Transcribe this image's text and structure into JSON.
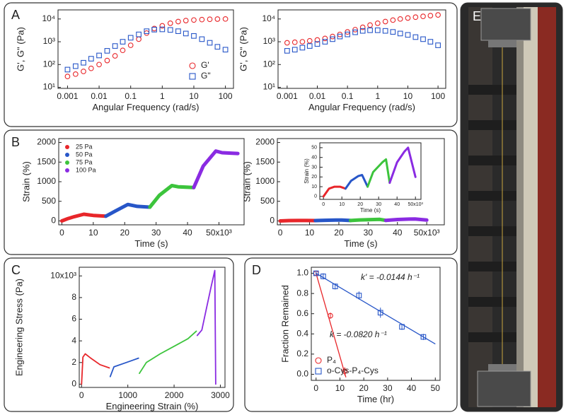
{
  "chart_data": [
    {
      "panel": "A",
      "type": "scatter",
      "x_label": "Angular Frequency (rad/s)",
      "y_label": "G', G\" (Pa)",
      "log_x": true,
      "log_y": true,
      "xlim": [
        0.0005,
        180
      ],
      "ylim": [
        9,
        25000
      ],
      "xticks": [
        0.001,
        0.01,
        0.1,
        1,
        10,
        100
      ],
      "yticks": [
        {
          "value": 10,
          "label": "10¹"
        },
        {
          "value": 100,
          "label": "10²"
        },
        {
          "value": 1000,
          "label": "10³"
        },
        {
          "value": 10000,
          "label": "10⁴"
        }
      ],
      "legend": "lower right",
      "x": [
        0.001,
        0.0018,
        0.0032,
        0.0056,
        0.01,
        0.018,
        0.032,
        0.056,
        0.1,
        0.18,
        0.32,
        0.56,
        1,
        1.8,
        3.2,
        5.6,
        10,
        18,
        32,
        56,
        100
      ],
      "series": [
        {
          "name": "G'",
          "color": "#e8262a",
          "marker": "circle",
          "values": [
            30,
            38,
            50,
            68,
            100,
            150,
            240,
            420,
            700,
            1300,
            2400,
            3800,
            5000,
            6500,
            7700,
            8500,
            9000,
            9400,
            9700,
            9900,
            10000
          ]
        },
        {
          "name": "G\"",
          "color": "#2756c8",
          "marker": "square",
          "values": [
            60,
            85,
            120,
            180,
            250,
            400,
            650,
            1000,
            1500,
            2100,
            2900,
            3400,
            3500,
            3300,
            2900,
            2300,
            1800,
            1300,
            900,
            600,
            450
          ]
        }
      ]
    },
    {
      "type": "scatter",
      "x_label": "Angular Frequency (rad/s)",
      "y_label": "G', G\" (Pa)",
      "log_x": true,
      "log_y": true,
      "xlim": [
        0.0005,
        180
      ],
      "ylim": [
        9,
        25000
      ],
      "xticks": [
        0.001,
        0.01,
        0.1,
        1,
        10,
        100
      ],
      "yticks": [
        {
          "value": 10,
          "label": "10¹"
        },
        {
          "value": 100,
          "label": "10²"
        },
        {
          "value": 1000,
          "label": "10³"
        },
        {
          "value": 10000,
          "label": "10⁴"
        }
      ],
      "x": [
        0.001,
        0.0018,
        0.0032,
        0.0056,
        0.01,
        0.018,
        0.032,
        0.056,
        0.1,
        0.18,
        0.32,
        0.56,
        1,
        1.8,
        3.2,
        5.6,
        10,
        18,
        32,
        56,
        100
      ],
      "series": [
        {
          "color": "#e8262a",
          "marker": "circle",
          "values": [
            900,
            950,
            1000,
            1100,
            1200,
            1400,
            1700,
            2100,
            2700,
            3400,
            4300,
            5400,
            6500,
            7700,
            8900,
            10000,
            11000,
            12000,
            13000,
            14000,
            15000
          ]
        },
        {
          "color": "#2756c8",
          "marker": "square",
          "values": [
            400,
            450,
            550,
            650,
            800,
            1000,
            1300,
            1700,
            2100,
            2600,
            3000,
            3200,
            3200,
            3000,
            2700,
            2300,
            2000,
            1600,
            1300,
            1000,
            700
          ]
        }
      ]
    },
    {
      "panel": "B",
      "type": "line",
      "x_label": "Time (s)",
      "y_label": "Strain (%)",
      "xlim": [
        -1000,
        58000
      ],
      "ylim": [
        -100,
        2100
      ],
      "xticks": [
        0,
        {
          "value": 10000,
          "label": "10"
        },
        {
          "value": 20000,
          "label": "20"
        },
        {
          "value": 30000,
          "label": "30"
        },
        {
          "value": 40000,
          "label": "40"
        },
        {
          "value": 50000,
          "label": "50x10³"
        }
      ],
      "yticks": [
        0,
        500,
        1000,
        1500,
        2000
      ],
      "legend": "upper left",
      "series": [
        {
          "name": "25 Pa",
          "color": "#e8262a",
          "x": [
            0,
            2000,
            4000,
            7000,
            10000,
            14000
          ],
          "values": [
            0,
            60,
            110,
            170,
            140,
            120
          ]
        },
        {
          "name": "50 Pa",
          "color": "#2756c8",
          "x": [
            14000,
            17000,
            21000,
            24000,
            28000
          ],
          "values": [
            120,
            250,
            420,
            370,
            350
          ]
        },
        {
          "name": "75 Pa",
          "color": "#3cc43c",
          "x": [
            28000,
            31000,
            35000,
            37000,
            42000
          ],
          "values": [
            350,
            650,
            900,
            870,
            850
          ]
        },
        {
          "name": "100 Pa",
          "color": "#8a2be2",
          "x": [
            42000,
            45000,
            49000,
            51000,
            56000
          ],
          "values": [
            850,
            1400,
            1780,
            1740,
            1720
          ]
        }
      ]
    },
    {
      "type": "line",
      "x_label": "Time (s)",
      "y_label": "Strain (%)",
      "xlim": [
        -1000,
        56000
      ],
      "ylim": [
        -100,
        2100
      ],
      "xticks": [
        0,
        {
          "value": 10000,
          "label": "10"
        },
        {
          "value": 20000,
          "label": "20"
        },
        {
          "value": 30000,
          "label": "30"
        },
        {
          "value": 40000,
          "label": "40"
        },
        {
          "value": 50000,
          "label": "50x10³"
        }
      ],
      "yticks": [
        0,
        500,
        1000,
        1500,
        2000
      ],
      "series": [
        {
          "color": "#e8262a",
          "x": [
            0,
            3000,
            6000,
            9000,
            12000
          ],
          "values": [
            0,
            8,
            10,
            10,
            8
          ]
        },
        {
          "color": "#2756c8",
          "x": [
            12000,
            15000,
            19000,
            21000,
            24000
          ],
          "values": [
            8,
            16,
            21,
            22,
            10
          ]
        },
        {
          "color": "#3cc43c",
          "x": [
            24000,
            27000,
            32000,
            34000,
            36000
          ],
          "values": [
            10,
            25,
            35,
            38,
            14
          ]
        },
        {
          "color": "#8a2be2",
          "x": [
            36000,
            40000,
            44000,
            46000,
            50000
          ],
          "values": [
            14,
            35,
            46,
            50,
            20
          ]
        }
      ],
      "inset": {
        "x_label": "Time (s)",
        "y_label": "Strain (%)",
        "xlim": [
          -2000,
          53000
        ],
        "ylim": [
          -3,
          55
        ],
        "xticks": [
          0,
          {
            "value": 10000,
            "label": "10"
          },
          {
            "value": 20000,
            "label": "20"
          },
          {
            "value": 30000,
            "label": "30"
          },
          {
            "value": 40000,
            "label": "40"
          },
          {
            "value": 50000,
            "label": "50x10³"
          }
        ],
        "yticks": [
          0,
          10,
          20,
          30,
          40,
          50
        ]
      }
    },
    {
      "panel": "C",
      "type": "line",
      "x_label": "Engineering Strain (%)",
      "y_label": "Engineering Stress (Pa)",
      "xlim": [
        -50,
        3100
      ],
      "ylim": [
        -300,
        10800
      ],
      "xticks": [
        0,
        1000,
        2000,
        3000
      ],
      "yticks": [
        0,
        {
          "value": 2000,
          "label": "2"
        },
        {
          "value": 4000,
          "label": "4"
        },
        {
          "value": 6000,
          "label": "6"
        },
        {
          "value": 8000,
          "label": "8"
        },
        {
          "value": 10000,
          "label": "10x10³"
        }
      ],
      "series": [
        {
          "color": "#e8262a",
          "x": [
            0,
            30,
            80,
            200,
            400,
            600
          ],
          "values": [
            0,
            2500,
            2800,
            2400,
            1800,
            1500
          ]
        },
        {
          "color": "#2756c8",
          "x": [
            620,
            700,
            900,
            1100,
            1230
          ],
          "values": [
            700,
            1600,
            1900,
            2200,
            2400
          ]
        },
        {
          "color": "#3cc43c",
          "x": [
            1250,
            1400,
            1700,
            2000,
            2300,
            2480
          ],
          "values": [
            1000,
            2000,
            2800,
            3500,
            4200,
            4900
          ]
        },
        {
          "color": "#8a2be2",
          "x": [
            2500,
            2600,
            2700,
            2800,
            2880,
            2900
          ],
          "values": [
            4500,
            5000,
            7000,
            9000,
            10500,
            0
          ]
        }
      ]
    },
    {
      "panel": "D",
      "type": "scatter",
      "x_label": "Time (hr)",
      "y_label": "Fraction Remained",
      "xlim": [
        -2,
        52
      ],
      "ylim": [
        -0.06,
        1.06
      ],
      "xticks": [
        0,
        10,
        20,
        30,
        40,
        50
      ],
      "yticks": [
        {
          "value": 0,
          "label": "0.0"
        },
        0.2,
        0.4,
        0.6,
        0.8,
        {
          "value": 1,
          "label": "1.0"
        }
      ],
      "legend": "lower left",
      "series": [
        {
          "name": "P₄",
          "color": "#e8262a",
          "marker": "circle",
          "x": [
            0,
            6,
            12
          ],
          "values": [
            1.0,
            0.58,
            0.03
          ],
          "errors": [
            0.02,
            0.03,
            0.04
          ],
          "fit": {
            "x": [
              0,
              12.5
            ],
            "values": [
              1.0,
              -0.03
            ]
          },
          "fit_label": "k = -0.0820 h⁻¹"
        },
        {
          "name": "o-Cys-P₄-Cys",
          "color": "#2756c8",
          "marker": "square",
          "x": [
            0,
            3,
            8,
            18,
            27,
            36,
            45
          ],
          "values": [
            1.0,
            0.97,
            0.87,
            0.78,
            0.61,
            0.47,
            0.37
          ],
          "errors": [
            0.02,
            0.03,
            0.03,
            0.04,
            0.05,
            0.03,
            0.03
          ],
          "fit": {
            "x": [
              0,
              50
            ],
            "values": [
              1.0,
              0.3
            ]
          },
          "fit_label": "k' = -0.0144 h⁻¹"
        }
      ]
    }
  ],
  "photo": {
    "panel": "E"
  }
}
